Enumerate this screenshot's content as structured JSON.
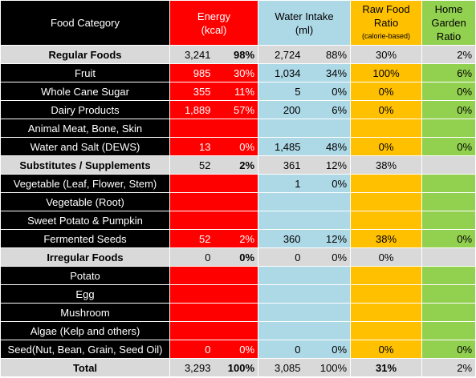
{
  "header": {
    "food_category": "Food Category",
    "energy_line1": "Energy",
    "energy_line2": "(kcal)",
    "water_line1": "Water Intake",
    "water_line2": "(ml)",
    "raw_line1": "Raw Food",
    "raw_line2": "Ratio",
    "raw_line3": "(calorie-based)",
    "garden_line1": "Home",
    "garden_line2": "Garden",
    "garden_line3": "Ratio"
  },
  "rows": [
    {
      "type": "group",
      "name": "Regular Foods",
      "energy": "3,241",
      "energy_pct": "98%",
      "water": "2,724",
      "water_pct": "88%",
      "raw": "30%",
      "garden": "2%"
    },
    {
      "type": "item",
      "name": "Fruit",
      "energy": "985",
      "energy_pct": "30%",
      "water": "1,034",
      "water_pct": "34%",
      "raw": "100%",
      "garden": "6%"
    },
    {
      "type": "item",
      "name": "Whole Cane Sugar",
      "energy": "355",
      "energy_pct": "11%",
      "water": "5",
      "water_pct": "0%",
      "raw": "0%",
      "garden": "0%"
    },
    {
      "type": "item",
      "name": "Dairy Products",
      "energy": "1,889",
      "energy_pct": "57%",
      "water": "200",
      "water_pct": "6%",
      "raw": "0%",
      "garden": "0%"
    },
    {
      "type": "item",
      "name": "Animal Meat, Bone, Skin",
      "energy": "",
      "energy_pct": "",
      "water": "",
      "water_pct": "",
      "raw": "",
      "garden": ""
    },
    {
      "type": "item",
      "name": "Water and Salt (DEWS)",
      "energy": "13",
      "energy_pct": "0%",
      "water": "1,485",
      "water_pct": "48%",
      "raw": "0%",
      "garden": "0%"
    },
    {
      "type": "group",
      "name": "Substitutes / Supplements",
      "energy": "52",
      "energy_pct": "2%",
      "water": "361",
      "water_pct": "12%",
      "raw": "38%",
      "garden": ""
    },
    {
      "type": "item",
      "name": "Vegetable (Leaf, Flower, Stem)",
      "energy": "",
      "energy_pct": "",
      "water": "1",
      "water_pct": "0%",
      "raw": "",
      "garden": ""
    },
    {
      "type": "item",
      "name": "Vegetable (Root)",
      "energy": "",
      "energy_pct": "",
      "water": "",
      "water_pct": "",
      "raw": "",
      "garden": ""
    },
    {
      "type": "item",
      "name": "Sweet Potato & Pumpkin",
      "energy": "",
      "energy_pct": "",
      "water": "",
      "water_pct": "",
      "raw": "",
      "garden": ""
    },
    {
      "type": "item",
      "name": "Fermented Seeds",
      "energy": "52",
      "energy_pct": "2%",
      "water": "360",
      "water_pct": "12%",
      "raw": "38%",
      "garden": "0%"
    },
    {
      "type": "group",
      "name": "Irregular Foods",
      "energy": "0",
      "energy_pct": "0%",
      "water": "0",
      "water_pct": "0%",
      "raw": "0%",
      "garden": ""
    },
    {
      "type": "item",
      "name": "Potato",
      "energy": "",
      "energy_pct": "",
      "water": "",
      "water_pct": "",
      "raw": "",
      "garden": ""
    },
    {
      "type": "item",
      "name": "Egg",
      "energy": "",
      "energy_pct": "",
      "water": "",
      "water_pct": "",
      "raw": "",
      "garden": ""
    },
    {
      "type": "item",
      "name": "Mushroom",
      "energy": "",
      "energy_pct": "",
      "water": "",
      "water_pct": "",
      "raw": "",
      "garden": ""
    },
    {
      "type": "item",
      "name": "Algae (Kelp and others)",
      "energy": "",
      "energy_pct": "",
      "water": "",
      "water_pct": "",
      "raw": "",
      "garden": ""
    },
    {
      "type": "item",
      "name": "Seed(Nut, Bean, Grain, Seed Oil)",
      "energy": "0",
      "energy_pct": "0%",
      "water": "0",
      "water_pct": "0%",
      "raw": "0%",
      "garden": "0%"
    },
    {
      "type": "total",
      "name": "Total",
      "energy": "3,293",
      "energy_pct": "100%",
      "water": "3,085",
      "water_pct": "100%",
      "raw": "31%",
      "garden": "2%"
    }
  ],
  "colors": {
    "energy": "#ff0000",
    "water": "#add8e6",
    "raw_food": "#ffc000",
    "garden": "#92d050",
    "category": "#000000",
    "group": "#d9d9d9"
  }
}
